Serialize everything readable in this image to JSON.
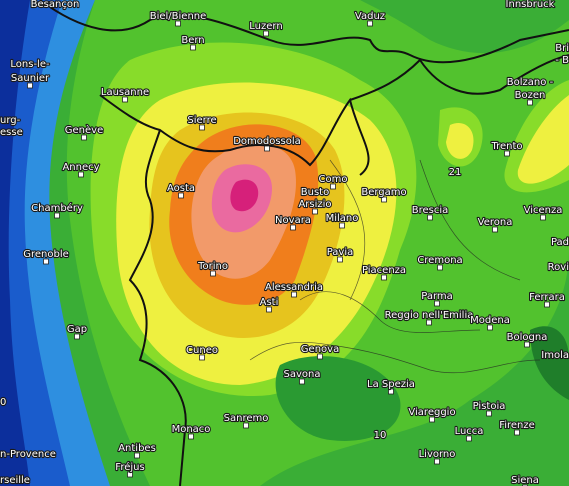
{
  "labels": [
    "Besançon",
    "Biel/Bienne",
    "Luzern",
    "Vaduz",
    "Innsbruck",
    "Bern",
    "Lons-le-",
    "Saunier",
    "Lausanne",
    "Bri",
    "- B",
    "Bolzano -",
    "Bozen",
    "urg-",
    "esse",
    "Genève",
    "Sierre",
    "Domodossola",
    "Trento",
    "Annecy",
    "Aosta",
    "Como",
    "Busto",
    "Arsizio",
    "Bergamo",
    "21",
    "Chambéry",
    "Milano",
    "Brescia",
    "Verona",
    "Vicenza",
    "Novara",
    "Grenoble",
    "Pavia",
    "Cremona",
    "Pad",
    "Torino",
    "Piacenza",
    "Rovi",
    "Alessandria",
    "Asti",
    "Parma",
    "Ferrara",
    "Gap",
    "Reggio nell'Emilia",
    "Modena",
    "Cuneo",
    "Genova",
    "Bologna",
    "Imola",
    "Savona",
    "La Spezia",
    "0",
    "Sanremo",
    "Viareggio",
    "Pistoia",
    "Monaco",
    "Lucca",
    "Firenze",
    "10",
    "Antibes",
    "n-Provence",
    "Livorno",
    "Fréjus",
    "rseille",
    "Siena"
  ]
}
